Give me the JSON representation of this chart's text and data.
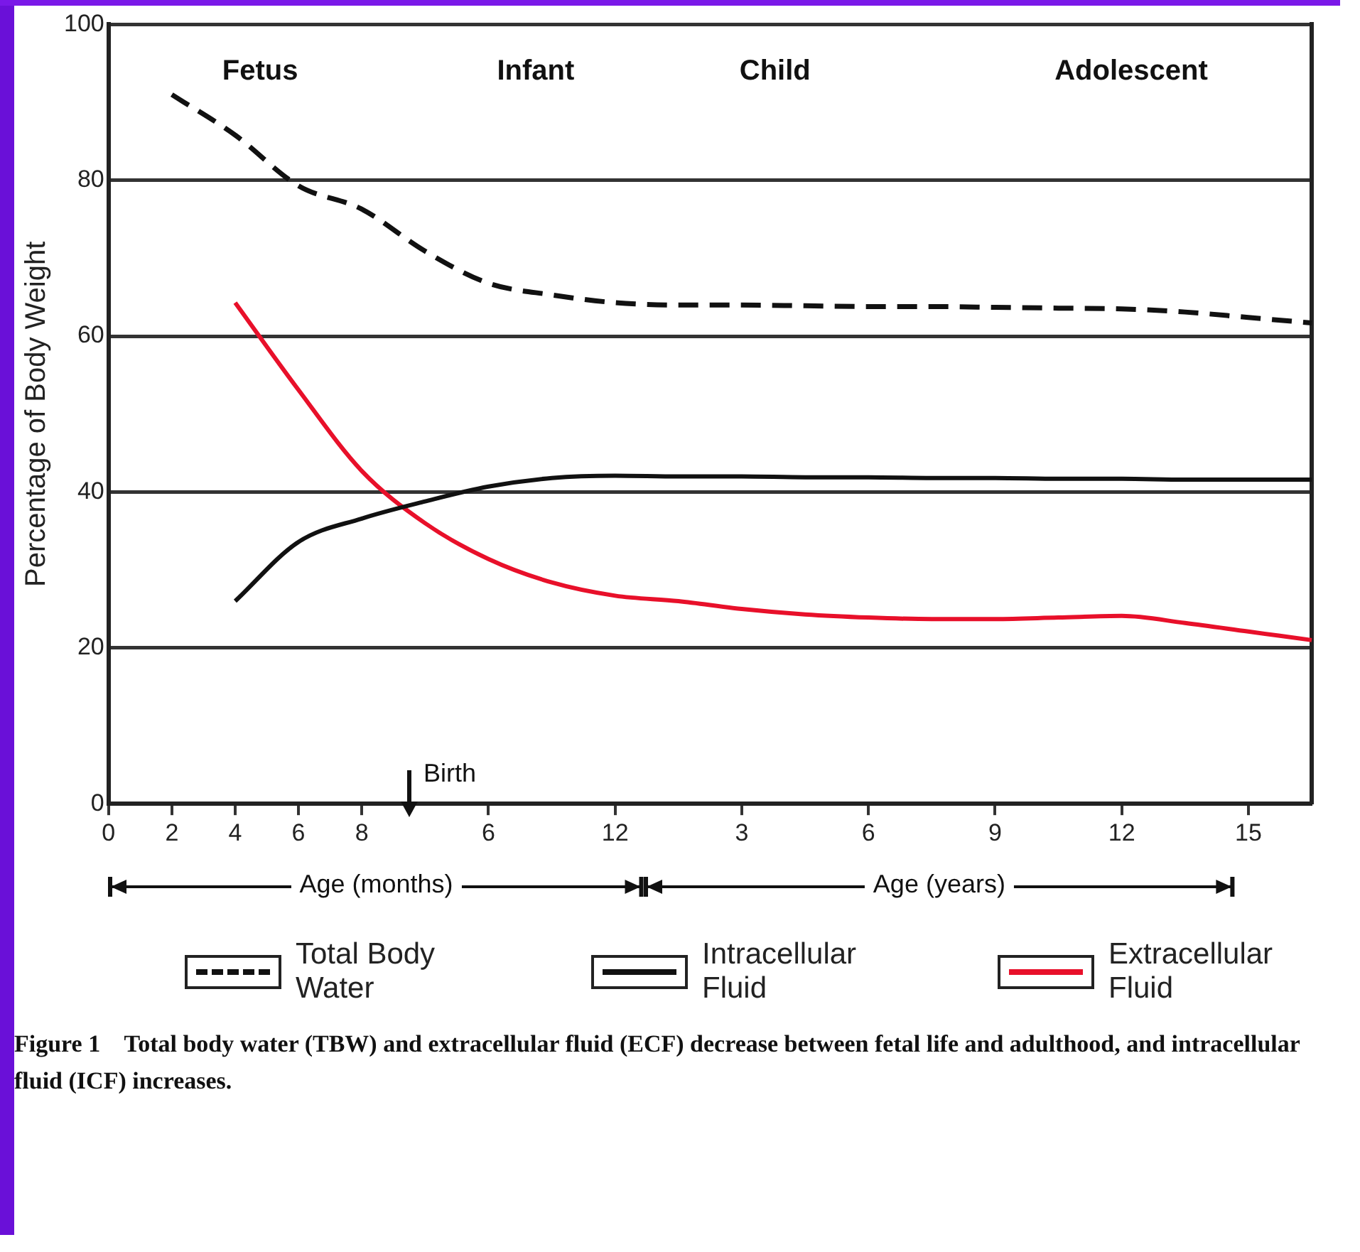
{
  "chart_data": {
    "type": "line",
    "ylabel": "Percentage of Body Weight",
    "categories": [
      "0",
      "2",
      "4",
      "6",
      "8",
      null,
      "6",
      null,
      "12",
      null,
      "3",
      null,
      "6",
      null,
      "9",
      null,
      "12",
      null,
      "15",
      null
    ],
    "ylim": [
      0,
      100
    ],
    "yticks": [
      0,
      20,
      40,
      60,
      80,
      100
    ],
    "grid": "y",
    "legend": "bottom",
    "marker": "none",
    "series": [
      {
        "name": "Total Body Water",
        "color": "#111111",
        "line_style": "dashed",
        "values": [
          null,
          91,
          85.8,
          79.3,
          76.3,
          70.9,
          66.8,
          65.3,
          64.3,
          64.0,
          64.0,
          63.9,
          63.8,
          63.8,
          63.7,
          63.6,
          63.5,
          63.1,
          62.4,
          61.7
        ]
      },
      {
        "name": "Intracellular Fluid",
        "color": "#111111",
        "line_style": "solid",
        "values": [
          null,
          null,
          26.0,
          33.6,
          36.6,
          38.8,
          40.7,
          41.8,
          42.1,
          42.0,
          42.0,
          41.9,
          41.9,
          41.8,
          41.8,
          41.7,
          41.7,
          41.6,
          41.6,
          41.6
        ]
      },
      {
        "name": "Extracellular Fluid",
        "color": "#e8102a",
        "line_style": "solid",
        "values": [
          null,
          null,
          64.3,
          53.1,
          42.7,
          36.0,
          31.4,
          28.4,
          26.7,
          26.0,
          25.0,
          24.3,
          23.9,
          23.7,
          23.7,
          23.9,
          24.1,
          23.2,
          22.1,
          21.0
        ]
      }
    ],
    "annotations": [
      "Fetus",
      "Infant",
      "Child",
      "Adolescent",
      "Birth",
      "Age (months)",
      "Age (years)",
      "Figure 1    Total body water (TBW) and extracellular fluid (ECF) decrease between fetal life and adulthood, and intracellular fluid (ICF) increases."
    ]
  }
}
